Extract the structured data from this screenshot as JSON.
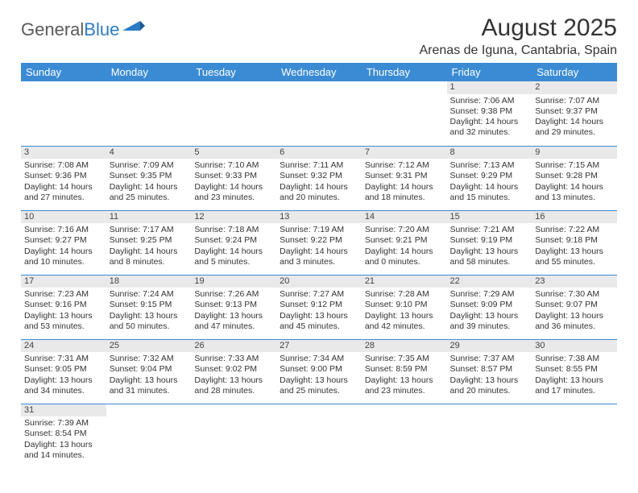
{
  "brand": {
    "part1": "General",
    "part2": "Blue"
  },
  "title": "August 2025",
  "location": "Arenas de Iguna, Cantabria, Spain",
  "headers": [
    "Sunday",
    "Monday",
    "Tuesday",
    "Wednesday",
    "Thursday",
    "Friday",
    "Saturday"
  ],
  "colors": {
    "header_bg": "#3b8bd4",
    "header_fg": "#ffffff",
    "daynum_bg": "#e9e9e9",
    "rule": "#3b8bd4",
    "logo_gray": "#5a5a5a",
    "logo_blue": "#2c7bc4",
    "text": "#333333"
  },
  "weeks": [
    [
      null,
      null,
      null,
      null,
      null,
      {
        "n": "1",
        "sr": "7:06 AM",
        "ss": "9:38 PM",
        "dl": "14 hours and 32 minutes."
      },
      {
        "n": "2",
        "sr": "7:07 AM",
        "ss": "9:37 PM",
        "dl": "14 hours and 29 minutes."
      }
    ],
    [
      {
        "n": "3",
        "sr": "7:08 AM",
        "ss": "9:36 PM",
        "dl": "14 hours and 27 minutes."
      },
      {
        "n": "4",
        "sr": "7:09 AM",
        "ss": "9:35 PM",
        "dl": "14 hours and 25 minutes."
      },
      {
        "n": "5",
        "sr": "7:10 AM",
        "ss": "9:33 PM",
        "dl": "14 hours and 23 minutes."
      },
      {
        "n": "6",
        "sr": "7:11 AM",
        "ss": "9:32 PM",
        "dl": "14 hours and 20 minutes."
      },
      {
        "n": "7",
        "sr": "7:12 AM",
        "ss": "9:31 PM",
        "dl": "14 hours and 18 minutes."
      },
      {
        "n": "8",
        "sr": "7:13 AM",
        "ss": "9:29 PM",
        "dl": "14 hours and 15 minutes."
      },
      {
        "n": "9",
        "sr": "7:15 AM",
        "ss": "9:28 PM",
        "dl": "14 hours and 13 minutes."
      }
    ],
    [
      {
        "n": "10",
        "sr": "7:16 AM",
        "ss": "9:27 PM",
        "dl": "14 hours and 10 minutes."
      },
      {
        "n": "11",
        "sr": "7:17 AM",
        "ss": "9:25 PM",
        "dl": "14 hours and 8 minutes."
      },
      {
        "n": "12",
        "sr": "7:18 AM",
        "ss": "9:24 PM",
        "dl": "14 hours and 5 minutes."
      },
      {
        "n": "13",
        "sr": "7:19 AM",
        "ss": "9:22 PM",
        "dl": "14 hours and 3 minutes."
      },
      {
        "n": "14",
        "sr": "7:20 AM",
        "ss": "9:21 PM",
        "dl": "14 hours and 0 minutes."
      },
      {
        "n": "15",
        "sr": "7:21 AM",
        "ss": "9:19 PM",
        "dl": "13 hours and 58 minutes."
      },
      {
        "n": "16",
        "sr": "7:22 AM",
        "ss": "9:18 PM",
        "dl": "13 hours and 55 minutes."
      }
    ],
    [
      {
        "n": "17",
        "sr": "7:23 AM",
        "ss": "9:16 PM",
        "dl": "13 hours and 53 minutes."
      },
      {
        "n": "18",
        "sr": "7:24 AM",
        "ss": "9:15 PM",
        "dl": "13 hours and 50 minutes."
      },
      {
        "n": "19",
        "sr": "7:26 AM",
        "ss": "9:13 PM",
        "dl": "13 hours and 47 minutes."
      },
      {
        "n": "20",
        "sr": "7:27 AM",
        "ss": "9:12 PM",
        "dl": "13 hours and 45 minutes."
      },
      {
        "n": "21",
        "sr": "7:28 AM",
        "ss": "9:10 PM",
        "dl": "13 hours and 42 minutes."
      },
      {
        "n": "22",
        "sr": "7:29 AM",
        "ss": "9:09 PM",
        "dl": "13 hours and 39 minutes."
      },
      {
        "n": "23",
        "sr": "7:30 AM",
        "ss": "9:07 PM",
        "dl": "13 hours and 36 minutes."
      }
    ],
    [
      {
        "n": "24",
        "sr": "7:31 AM",
        "ss": "9:05 PM",
        "dl": "13 hours and 34 minutes."
      },
      {
        "n": "25",
        "sr": "7:32 AM",
        "ss": "9:04 PM",
        "dl": "13 hours and 31 minutes."
      },
      {
        "n": "26",
        "sr": "7:33 AM",
        "ss": "9:02 PM",
        "dl": "13 hours and 28 minutes."
      },
      {
        "n": "27",
        "sr": "7:34 AM",
        "ss": "9:00 PM",
        "dl": "13 hours and 25 minutes."
      },
      {
        "n": "28",
        "sr": "7:35 AM",
        "ss": "8:59 PM",
        "dl": "13 hours and 23 minutes."
      },
      {
        "n": "29",
        "sr": "7:37 AM",
        "ss": "8:57 PM",
        "dl": "13 hours and 20 minutes."
      },
      {
        "n": "30",
        "sr": "7:38 AM",
        "ss": "8:55 PM",
        "dl": "13 hours and 17 minutes."
      }
    ],
    [
      {
        "n": "31",
        "sr": "7:39 AM",
        "ss": "8:54 PM",
        "dl": "13 hours and 14 minutes."
      },
      null,
      null,
      null,
      null,
      null,
      null
    ]
  ],
  "labels": {
    "sunrise": "Sunrise:",
    "sunset": "Sunset:",
    "daylight": "Daylight:"
  }
}
